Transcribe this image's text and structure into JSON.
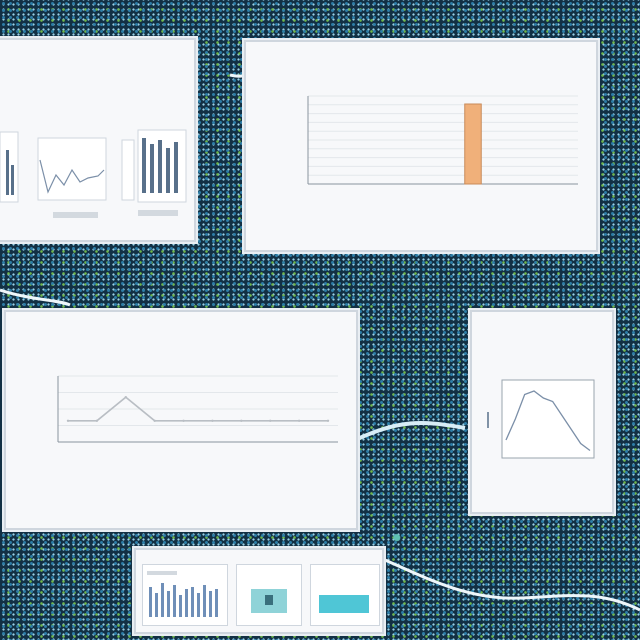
{
  "panels": {
    "dashboard_left": {
      "title_lines": [
        "",
        "",
        ""
      ],
      "sub_labels": [
        "",
        ""
      ]
    },
    "bar_chart": {
      "title_lines": [
        "",
        ""
      ],
      "chart_data": {
        "type": "bar",
        "categories": [
          "",
          "",
          "",
          "",
          "",
          "",
          "",
          "",
          ""
        ],
        "values": [
          0,
          0,
          0,
          0,
          0,
          1,
          0,
          0,
          0
        ],
        "ylim": [
          0,
          1.1
        ],
        "grid": true,
        "bar_color": "#f0b07a"
      }
    },
    "line_chart": {
      "title_lines": [
        "",
        ""
      ],
      "chart_data": {
        "type": "line",
        "categories": [
          "",
          "",
          "",
          "",
          "",
          "",
          "",
          "",
          "",
          ""
        ],
        "values": [
          0.9,
          0.9,
          1.9,
          0.9,
          0.9,
          0.9,
          0.9,
          0.9,
          0.9,
          0.9
        ],
        "ylim": [
          0,
          2.8
        ],
        "grid": true,
        "line_color": "#b9bec4"
      }
    },
    "small_line_chart": {
      "title_lines": [
        "",
        ""
      ],
      "chart_data": {
        "type": "line",
        "x": [
          0,
          1,
          2,
          3,
          4,
          5,
          6,
          7,
          8,
          9
        ],
        "values": [
          0.2,
          0.5,
          0.85,
          0.9,
          0.8,
          0.75,
          0.55,
          0.35,
          0.15,
          0.05
        ],
        "ylim": [
          0,
          1
        ],
        "line_color": "#7b8fa8"
      }
    },
    "bottom_strip": {
      "labels": [
        "",
        ""
      ]
    }
  },
  "colors": {
    "accent_orange": "#f0b07a",
    "accent_teal": "#4fc6d6",
    "panel_bg": "#f7f8fa"
  },
  "icons": [
    "bar-chart-icon",
    "line-chart-icon",
    "image-thumbnail-icon"
  ]
}
